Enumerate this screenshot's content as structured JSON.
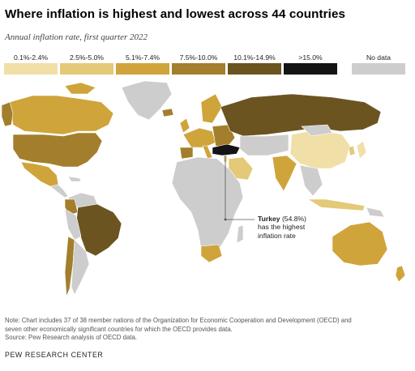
{
  "header": {
    "title": "Where inflation is highest and lowest across 44 countries",
    "subtitle": "Annual inflation rate, first quarter 2022"
  },
  "legend": {
    "items": [
      {
        "label": "0.1%-2.4%",
        "color": "#f1dfa8"
      },
      {
        "label": "2.5%-5.0%",
        "color": "#e3c978"
      },
      {
        "label": "5.1%-7.4%",
        "color": "#cfa43a"
      },
      {
        "label": "7.5%-10.0%",
        "color": "#a37f2d"
      },
      {
        "label": "10.1%-14.9%",
        "color": "#6b5420"
      },
      {
        "label": ">15.0%",
        "color": "#141414"
      },
      {
        "label": "No data",
        "color": "#cdcdcd"
      }
    ]
  },
  "annotation": {
    "country": "Turkey",
    "value": "(54.8%)",
    "line2": "has the highest",
    "line3": "inflation rate"
  },
  "footer": {
    "note_line1": "Note: Chart includes 37 of 38 member nations of the Organization for Economic Cooperation and Development (OECD) and",
    "note_line2": "seven other economically significant countries for which the OECD provides data.",
    "source": "Source: Pew Research analysis of OECD data.",
    "brand": "PEW RESEARCH CENTER"
  },
  "chart_data": {
    "type": "choropleth",
    "title": "Where inflation is highest and lowest across 44 countries",
    "subtitle": "Annual inflation rate, first quarter 2022",
    "bins": [
      "0.1%-2.4%",
      "2.5%-5.0%",
      "5.1%-7.4%",
      "7.5%-10.0%",
      "10.1%-14.9%",
      ">15.0%",
      "No data"
    ],
    "highlight": {
      "country": "Turkey",
      "value": 54.8
    }
  }
}
